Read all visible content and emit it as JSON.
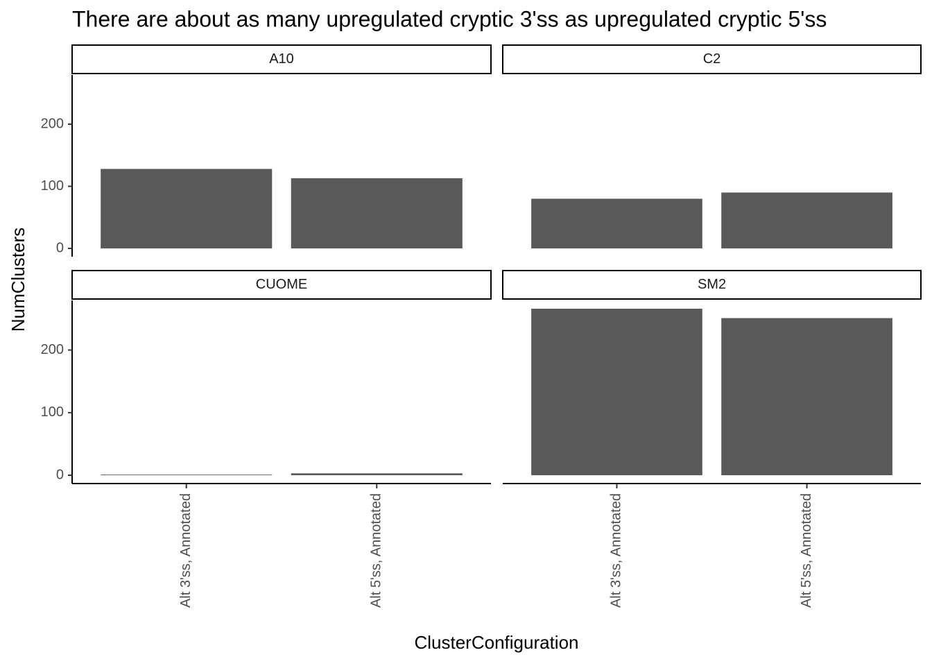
{
  "chart_data": {
    "type": "bar",
    "title": "There are about as many upregulated cryptic 3'ss as upregulated cryptic 5'ss",
    "x_label": "ClusterConfiguration",
    "y_label": "NumClusters",
    "categories": [
      "Alt 3'ss, Annotated",
      "Alt 5'ss, Annotated"
    ],
    "color": "#595959",
    "ylim": [
      -13.3,
      279.3
    ],
    "yticks": [
      0,
      100,
      200
    ],
    "facets": [
      {
        "label": "A10",
        "values": [
          128,
          113
        ]
      },
      {
        "label": "C2",
        "values": [
          80,
          90
        ]
      },
      {
        "label": "CUOME",
        "values": [
          1,
          3
        ]
      },
      {
        "label": "SM2",
        "values": [
          266,
          251
        ]
      }
    ]
  }
}
